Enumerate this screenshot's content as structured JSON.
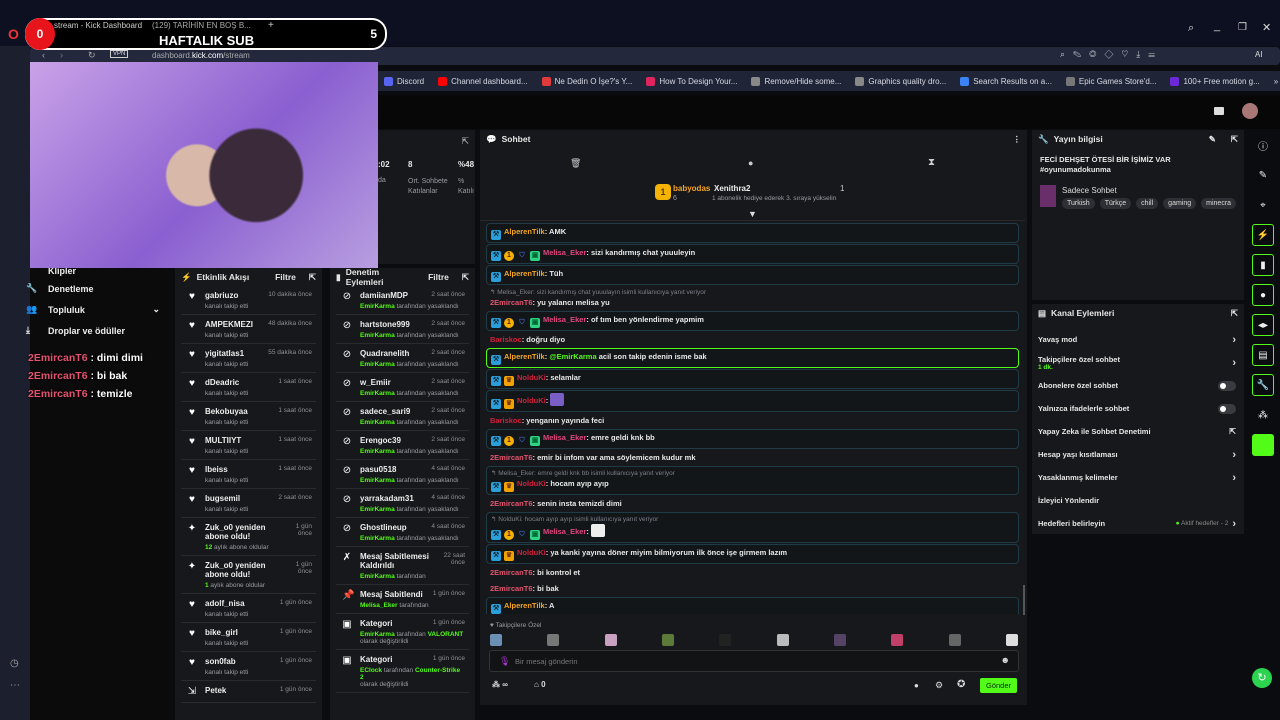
{
  "browser": {
    "tabs": [
      "stream - Kick Dashboard",
      "(129) TARİHİN EN BOŞ B..."
    ],
    "new_tab": "+",
    "vpn": "VPN",
    "url_pre": "dashboard.",
    "url_host": "kick.com",
    "url_path": "/stream",
    "ai_label": "AI",
    "bookmarks": [
      {
        "label": "Discord",
        "color": "#5865f2"
      },
      {
        "label": "Channel dashboard...",
        "color": "#ff0000"
      },
      {
        "label": "Ne Dedin O İşe?'s Y...",
        "color": "#e03a3a"
      },
      {
        "label": "How To Design Your...",
        "color": "#e0245e"
      },
      {
        "label": "Remove/Hide some...",
        "color": "#888888"
      },
      {
        "label": "Graphics quality dro...",
        "color": "#888888"
      },
      {
        "label": "Search Results on a...",
        "color": "#3b82f6"
      },
      {
        "label": "Epic Games Store'd...",
        "color": "#777777"
      },
      {
        "label": "100+ Free motion g...",
        "color": "#6d28d9"
      }
    ],
    "more": "»"
  },
  "overlay": {
    "counter_left": "0",
    "title": "HAFTALIK SUB",
    "counter_right": "5",
    "chat": [
      {
        "user": "2EmircanT6",
        "sep": " : ",
        "text": "dimi dimi"
      },
      {
        "user": "2EmircanT6",
        "sep": " : ",
        "text": "bi bak"
      },
      {
        "user": "2EmircanT6",
        "sep": " : ",
        "text": "temizle"
      }
    ]
  },
  "sidebar": {
    "items": [
      {
        "label": "Klipler",
        "icon": ""
      },
      {
        "label": "Denetleme",
        "icon": "wrench"
      },
      {
        "label": "Topluluk",
        "icon": "users"
      },
      {
        "label": "Droplar ve ödüller",
        "icon": "drops"
      }
    ]
  },
  "stats": {
    "values": [
      ":02",
      "8",
      "%48"
    ],
    "labels": [
      "da",
      "Ort. Sohbete Katılanlar",
      "% Katılı"
    ]
  },
  "activity": {
    "title": "Etkinlik Akışı",
    "filter": "Filtre",
    "items": [
      {
        "icon": "heart",
        "user": "gabriuzo",
        "time": "10 dakika önce",
        "sub": "kanalı takip etti"
      },
      {
        "icon": "heart",
        "user": "AMPEKMEZI",
        "time": "48 dakika önce",
        "sub": "kanalı takip etti"
      },
      {
        "icon": "heart",
        "user": "yigitatlas1",
        "time": "55 dakika önce",
        "sub": "kanalı takip etti"
      },
      {
        "icon": "heart",
        "user": "dDeadric",
        "time": "1 saat önce",
        "sub": "kanalı takip etti"
      },
      {
        "icon": "heart",
        "user": "Bekobuyaa",
        "time": "1 saat önce",
        "sub": "kanalı takip etti"
      },
      {
        "icon": "heart",
        "user": "MULTIIYT",
        "time": "1 saat önce",
        "sub": "kanalı takip etti"
      },
      {
        "icon": "heart",
        "user": "lbeiss",
        "time": "1 saat önce",
        "sub": "kanalı takip etti"
      },
      {
        "icon": "heart",
        "user": "bugsemil",
        "time": "2 saat önce",
        "sub": "kanalı takip etti"
      },
      {
        "icon": "sparkle",
        "user": "Zuk_o0 yeniden abone oldu!",
        "time": "1 gün önce",
        "hl": "12",
        "sub": " aylık abone oldular"
      },
      {
        "icon": "sparkle",
        "user": "Zuk_o0 yeniden abone oldu!",
        "time": "1 gün önce",
        "hl": "1",
        "sub": " aylık abone oldular"
      },
      {
        "icon": "heart",
        "user": "adolf_nisa",
        "time": "1 gün önce",
        "sub": "kanalı takip etti"
      },
      {
        "icon": "heart",
        "user": "bike_girl",
        "time": "1 gün önce",
        "sub": "kanalı takip etti"
      },
      {
        "icon": "heart",
        "user": "son0fab",
        "time": "1 gün önce",
        "sub": "kanalı takip etti"
      },
      {
        "icon": "raid",
        "user": "Petek",
        "time": "1 gün önce",
        "sub": ""
      }
    ]
  },
  "modlog": {
    "title": "Denetim Eylemleri",
    "filter": "Filtre",
    "items": [
      {
        "icon": "ban",
        "user": "damiianMDP",
        "time": "2 saat önce",
        "by": "EmirKarma",
        "sub": " tarafından yasaklandı"
      },
      {
        "icon": "ban",
        "user": "hartstone999",
        "time": "2 saat önce",
        "by": "EmirKarma",
        "sub": " tarafından yasaklandı"
      },
      {
        "icon": "ban",
        "user": "Quadranelith",
        "time": "2 saat önce",
        "by": "EmirKarma",
        "sub": " tarafından yasaklandı"
      },
      {
        "icon": "ban",
        "user": "w_Emiir",
        "time": "2 saat önce",
        "by": "EmirKarma",
        "sub": " tarafından yasaklandı"
      },
      {
        "icon": "ban",
        "user": "sadece_sari9",
        "time": "2 saat önce",
        "by": "EmirKarma",
        "sub": " tarafından yasaklandı"
      },
      {
        "icon": "ban",
        "user": "Erengoc39",
        "time": "2 saat önce",
        "by": "EmirKarma",
        "sub": " tarafından yasaklandı"
      },
      {
        "icon": "ban",
        "user": "pasu0518",
        "time": "4 saat önce",
        "by": "EmirKarma",
        "sub": " tarafından yasaklandı"
      },
      {
        "icon": "ban",
        "user": "yarrakadam31",
        "time": "4 saat önce",
        "by": "EmirKarma",
        "sub": " tarafından yasaklandı"
      },
      {
        "icon": "ban",
        "user": "Ghostlineup",
        "time": "4 saat önce",
        "by": "EmirKarma",
        "sub": " tarafından yasaklandı"
      },
      {
        "icon": "unpin",
        "user": "Mesaj Sabitlemesi Kaldırıldı",
        "time": "22 saat önce",
        "by": "EmirKarma",
        "sub": " tarafından"
      },
      {
        "icon": "pin",
        "user": "Mesaj Sabitlendi",
        "time": "1 gün önce",
        "by": "Melisa_Eker",
        "sub": " tarafından"
      },
      {
        "icon": "category",
        "user": "Kategori",
        "time": "1 gün önce",
        "by": "EmirKarma",
        "sub": " tarafından ",
        "val": "VALORANT",
        "sub2": "olarak değiştirildi"
      },
      {
        "icon": "category",
        "user": "Kategori",
        "time": "1 gün önce",
        "by": "EClock",
        "sub": " tarafından ",
        "val": "Counter-Strike 2",
        "sub2": "olarak değiştirildi"
      }
    ]
  },
  "chat": {
    "title": "Sohbet",
    "leader": {
      "rank": "1",
      "user": "babyodas",
      "count": "6",
      "user2": "Xenithra2",
      "count2": "1",
      "hint": "1 abonelik hediye ederek 3. sıraya yükselin"
    },
    "messages": [
      {
        "style": "boxed",
        "badges": [
          "mod"
        ],
        "user": "AlperenTilk",
        "color": "#f5a623",
        "text": "AMK"
      },
      {
        "style": "boxed",
        "badges": [
          "mod",
          "sub",
          "shield",
          "gift"
        ],
        "user": "Melisa_Eker",
        "color": "#e0457b",
        "text": "sizi kandırmış chat yuuuleyin"
      },
      {
        "style": "boxed",
        "badges": [
          "mod"
        ],
        "user": "AlperenTilk",
        "color": "#f5a623",
        "text": "Tüh"
      },
      {
        "style": "",
        "reply": "Melisa_Eker: sizi kandırmış chat yuuulayın isimli kullanıcıya yanıt veriyor",
        "badges": [],
        "user": "2EmircanT6",
        "color": "#e4536f",
        "text": "yu yalancı melisa yu"
      },
      {
        "style": "boxed",
        "badges": [
          "mod",
          "sub",
          "shield",
          "gift"
        ],
        "user": "Melisa_Eker",
        "color": "#e0457b",
        "text": "of tım ben yönlendirme yapmim"
      },
      {
        "style": "",
        "badges": [],
        "user": "Bariskoc",
        "color": "#d0213c",
        "text": "doğru diyo"
      },
      {
        "style": "hl",
        "badges": [
          "mod"
        ],
        "user": "AlperenTilk",
        "color": "#f5a623",
        "mention": "@EmirKarma",
        "text": " acil son takip edenin isme bak"
      },
      {
        "style": "boxed",
        "badges": [
          "mod",
          "crown"
        ],
        "user": "NolduKi",
        "color": "#d0213c",
        "text": "selamlar"
      },
      {
        "style": "boxed",
        "badges": [
          "mod",
          "crown"
        ],
        "user": "NolduKi",
        "color": "#d0213c",
        "text": "",
        "emote": "#7a5fc7"
      },
      {
        "style": "",
        "badges": [],
        "user": "Bariskoc",
        "color": "#d0213c",
        "text": "yenganın yayında feci"
      },
      {
        "style": "boxed",
        "badges": [
          "mod",
          "sub",
          "shield",
          "gift"
        ],
        "user": "Melisa_Eker",
        "color": "#e0457b",
        "text": "emre geldi knk bb"
      },
      {
        "style": "",
        "badges": [],
        "user": "2EmircanT6",
        "color": "#e4536f",
        "text": "emir bi infom var ama söylemicem kudur mk"
      },
      {
        "style": "boxed",
        "reply": "Melisa_Eker: emre geldi knk bb isimli kullanıcıya yanıt veriyor",
        "badges": [
          "mod",
          "crown"
        ],
        "user": "NolduKi",
        "color": "#d0213c",
        "text": "hocam ayıp ayıp"
      },
      {
        "style": "",
        "badges": [],
        "user": "2EmircanT6",
        "color": "#e4536f",
        "text": "senin insta temizdi dimi"
      },
      {
        "style": "boxed",
        "reply": "NolduKi: hocam ayıp ayıp isimli kullanıcıya yanıt veriyor",
        "badges": [
          "mod",
          "sub",
          "shield",
          "gift"
        ],
        "user": "Melisa_Eker",
        "color": "#e0457b",
        "text": "",
        "emote": "#eeeeee"
      },
      {
        "style": "boxed",
        "badges": [
          "mod",
          "crown"
        ],
        "user": "NolduKi",
        "color": "#d0213c",
        "text": "ya kanki yayına döner miyim bilmiyorum ilk önce işe girmem lazım"
      },
      {
        "style": "",
        "badges": [],
        "user": "2EmircanT6",
        "color": "#e4536f",
        "text": "bi kontrol et"
      },
      {
        "style": "",
        "badges": [],
        "user": "2EmircanT6",
        "color": "#e4536f",
        "text": "bi bak"
      },
      {
        "style": "boxed",
        "badges": [
          "mod"
        ],
        "user": "AlperenTilk",
        "color": "#f5a623",
        "text": "A"
      },
      {
        "style": "boxed",
        "badges": [
          "mod",
          "crown"
        ],
        "user": "NolduKi",
        "color": "#d0213c",
        "text": "şuan yt ye video yüklüyorum kanki"
      },
      {
        "style": "",
        "badges": [],
        "user": "2EmircanT6",
        "color": "#e4536f",
        "text": "dimi dimi"
      },
      {
        "style": "",
        "badges": [],
        "user": "2EmircanT6",
        "color": "#e4536f",
        "text": "bi bak"
      },
      {
        "style": "",
        "badges": [],
        "user": "2EmircanT6",
        "color": "#e4536f",
        "text": "temizle"
      }
    ],
    "emote_section": "Takipçilere Özel",
    "emote_colors": [
      "#6b8fb5",
      "#777777",
      "#c9a0c0",
      "#5c7a3a",
      "#222222",
      "#bbbbbb",
      "#554466",
      "#c0406a",
      "#666666",
      "#dddddd"
    ],
    "placeholder": "Bir mesaj gönderin",
    "infinity": "∞",
    "count": "0",
    "send": "Gönder"
  },
  "stream_info": {
    "title": "Yayın bilgisi",
    "stream_title": "FECİ DEHŞET ÖTESİ BİR İŞİMİZ VAR",
    "hashtag": "#oyunumadokunma",
    "category": "Sadece Sohbet",
    "tags": [
      "Turkish",
      "Türkçe",
      "chill",
      "gaming",
      "minecra"
    ]
  },
  "channel_actions": {
    "title": "Kanal Eylemleri",
    "rows": [
      {
        "label": "Yavaş mod",
        "control": "chevron"
      },
      {
        "label": "Takipçilere özel sohbet",
        "sub": "1 dk.",
        "control": "chevron"
      },
      {
        "label": "Abonelere özel sohbet",
        "control": "toggle",
        "on": false
      },
      {
        "label": "Yalnızca ifadelerle sohbet",
        "control": "toggle",
        "on": false
      },
      {
        "label": "Yapay Zeka ile Sohbet Denetimi",
        "control": "external"
      },
      {
        "label": "Hesap yaşı kısıtlaması",
        "control": "chevron"
      },
      {
        "label": "Yasaklanmış kelimeler",
        "control": "chevron"
      },
      {
        "label": "İzleyici Yönlendir",
        "control": "none"
      },
      {
        "label": "Hedefleri belirleyin",
        "status": "Aktif hedefler - 2",
        "control": "chevron"
      }
    ]
  },
  "colors": {
    "accent": "#53fc18",
    "panel": "#17181b"
  }
}
